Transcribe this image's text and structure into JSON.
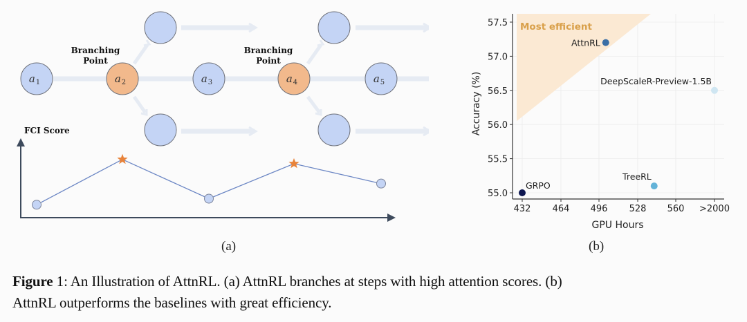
{
  "figure_a": {
    "branching_label_line1": "Branching",
    "branching_label_line2": "Point",
    "nodes": [
      {
        "id": "a1",
        "label": "a",
        "sub": "1",
        "type": "step"
      },
      {
        "id": "a2",
        "label": "a",
        "sub": "2",
        "type": "branch"
      },
      {
        "id": "a3",
        "label": "a",
        "sub": "3",
        "type": "step"
      },
      {
        "id": "a4",
        "label": "a",
        "sub": "4",
        "type": "branch"
      },
      {
        "id": "a5",
        "label": "a",
        "sub": "5",
        "type": "step"
      }
    ],
    "fci_axis_label": "FCI Score",
    "fci_points": [
      {
        "step": "a1",
        "score": 0.1,
        "marker": "circle"
      },
      {
        "step": "a2",
        "score": 0.85,
        "marker": "star"
      },
      {
        "step": "a3",
        "score": 0.2,
        "marker": "circle"
      },
      {
        "step": "a4",
        "score": 0.78,
        "marker": "star"
      },
      {
        "step": "a5",
        "score": 0.45,
        "marker": "circle"
      }
    ],
    "sublabel": "(a)",
    "colors": {
      "step": "#c4d4f5",
      "branch": "#f2b98c",
      "star": "#e8833a",
      "line": "#6b86c4",
      "axis": "#3d4a5c",
      "arrow": "#e8edf5"
    }
  },
  "chart_data": {
    "type": "scatter",
    "title": "",
    "xlabel": "GPU Hours",
    "ylabel": "Accuracy (%)",
    "x_tick_labels": [
      "432",
      "464",
      "496",
      "528",
      "560",
      ">2000"
    ],
    "y_ticks": [
      55.0,
      55.5,
      56.0,
      56.5,
      57.0,
      57.5
    ],
    "y_tick_labels": [
      "55.0",
      "55.5",
      "56.0",
      "56.5",
      "57.0",
      "57.5"
    ],
    "ylim": [
      54.9,
      57.6
    ],
    "grid": true,
    "annotation": "Most efficient",
    "points": [
      {
        "name": "AttnRL",
        "x": 501,
        "y": 57.2,
        "color": "#3a6ea5"
      },
      {
        "name": "DeepScaleR-Preview-1.5B",
        "x": ">2000",
        "y": 56.5,
        "color": "#cfe6f2"
      },
      {
        "name": "TreeRL",
        "x": 541,
        "y": 55.1,
        "color": "#63b3d8"
      },
      {
        "name": "GRPO",
        "x": 432,
        "y": 55.0,
        "color": "#0d1650"
      }
    ],
    "sublabel": "(b)",
    "colors": {
      "region": "#fbe9d3",
      "annotation": "#d9a04a"
    }
  },
  "caption": {
    "figure_label": "Figure",
    "figure_number": "1",
    "text_line1": ": An Illustration of AttnRL. (a) AttnRL branches at steps with high attention scores. (b)",
    "text_line2": "AttnRL outperforms the baselines with great efficiency."
  }
}
